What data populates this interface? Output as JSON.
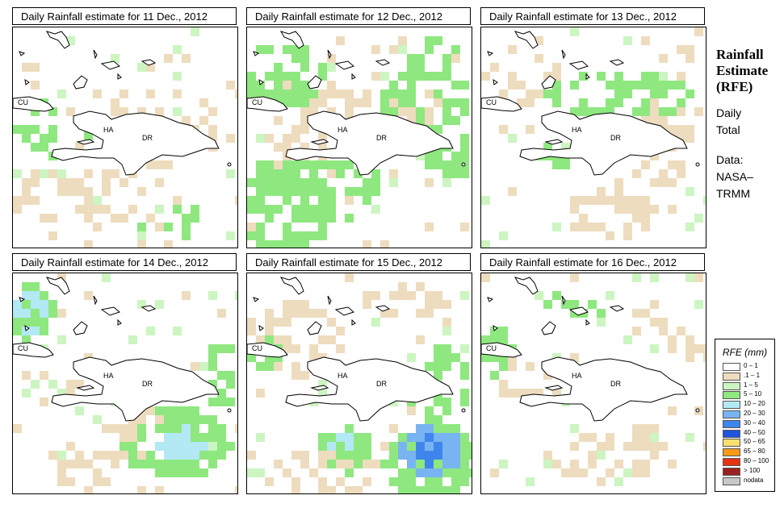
{
  "side": {
    "title_lines": [
      "Rainfall",
      "Estimate",
      "(RFE)"
    ],
    "period_lines": [
      "Daily",
      "Total"
    ],
    "source_lines": [
      "Data:",
      "NASA–",
      "TRMM"
    ]
  },
  "panels": [
    {
      "title": "Daily Rainfall estimate for  11 Dec., 2012"
    },
    {
      "title": "Daily Rainfall estimate for  12 Dec., 2012"
    },
    {
      "title": "Daily Rainfall estimate for  13 Dec., 2012"
    },
    {
      "title": "Daily Rainfall estimate for  14 Dec., 2012"
    },
    {
      "title": "Daily Rainfall estimate for  15 Dec., 2012"
    },
    {
      "title": "Daily Rainfall estimate for  16 Dec., 2012"
    }
  ],
  "map_labels": {
    "cuba": "CU",
    "haiti": "HA",
    "dr": "DR"
  },
  "legend": {
    "title": "RFE (mm)",
    "items": [
      {
        "label": "0 – 1",
        "color": "#ffffff"
      },
      {
        "label": ".1 – 1",
        "color": "#eedcbf"
      },
      {
        "label": "1 – 5",
        "color": "#ccf5c2"
      },
      {
        "label": "5 – 10",
        "color": "#8ee87f"
      },
      {
        "label": "10 – 20",
        "color": "#b3e8f5"
      },
      {
        "label": "20 – 30",
        "color": "#79b4f2"
      },
      {
        "label": "30 – 40",
        "color": "#3f86ec"
      },
      {
        "label": "40 – 50",
        "color": "#1f55dd"
      },
      {
        "label": "50 – 65",
        "color": "#f7e071"
      },
      {
        "label": "65 – 80",
        "color": "#f79a17"
      },
      {
        "label": "80 – 100",
        "color": "#e63314"
      },
      {
        "label": "> 100",
        "color": "#9c2020"
      },
      {
        "label": "nodata",
        "color": "#c8c8c8"
      }
    ]
  }
}
